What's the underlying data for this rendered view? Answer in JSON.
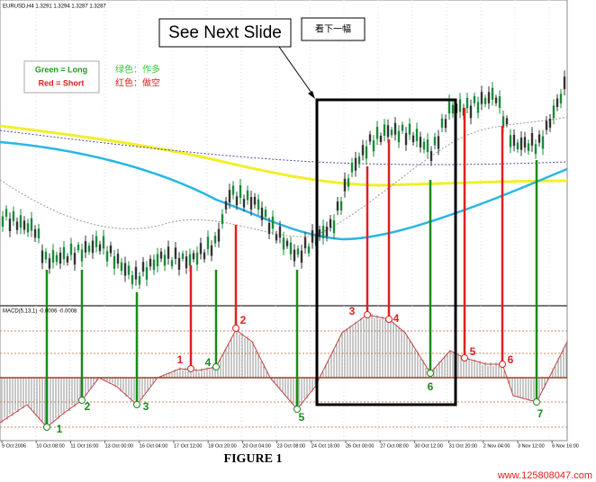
{
  "header": {
    "symbol": "EURUSD,H4 1.3291 1.3294 1.3287 1.3287"
  },
  "callouts": {
    "next_slide": "See Next Slide",
    "next_slide_cn": "看下一幅"
  },
  "legend": {
    "long": "Green = Long",
    "short": "Red = Short",
    "long_cn": "绿色：作多",
    "short_cn": "红色：做空"
  },
  "indicator": "MACD(5,13,1) -0.0006 -0.0008",
  "signals": [
    {
      "label": "1",
      "color": "#1a8a1a"
    },
    {
      "label": "2",
      "color": "#1a8a1a"
    },
    {
      "label": "3",
      "color": "#1a8a1a"
    },
    {
      "label": "1",
      "color": "#e02020"
    },
    {
      "label": "4",
      "color": "#1a8a1a"
    },
    {
      "label": "2",
      "color": "#e02020"
    },
    {
      "label": "5",
      "color": "#1a8a1a"
    },
    {
      "label": "3",
      "color": "#e02020"
    },
    {
      "label": "4",
      "color": "#e02020"
    },
    {
      "label": "6",
      "color": "#1a8a1a"
    },
    {
      "label": "5",
      "color": "#e02020"
    },
    {
      "label": "6",
      "color": "#e02020"
    },
    {
      "label": "7",
      "color": "#1a8a1a"
    }
  ],
  "dates": [
    "9 Oct 2006",
    "10 Oct 08:00",
    "11 Oct 16:00",
    "13 Oct 00:00",
    "16 Oct 04:00",
    "17 Oct 12:00",
    "18 Oct 20:00",
    "20 Oct 04:00",
    "23 Oct 08:00",
    "24 Oct 16:00",
    "26 Oct 00:00",
    "27 Oct 08:00",
    "30 Oct 12:00",
    "31 Oct 20:00",
    "2 Nov 04:00",
    "3 Nov 12:00",
    "6 Nov 16:00"
  ],
  "caption": "FIGURE 1",
  "watermark": "www.125808047.com"
}
